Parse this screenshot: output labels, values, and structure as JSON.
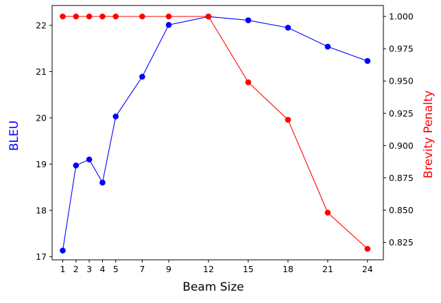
{
  "chart_data": {
    "type": "line",
    "xlabel": "Beam Size",
    "x": [
      1,
      2,
      3,
      4,
      5,
      7,
      9,
      12,
      15,
      18,
      21,
      24
    ],
    "xticks": [
      "1",
      "2",
      "3",
      "4",
      "5",
      "7",
      "9",
      "12",
      "15",
      "18",
      "21",
      "24"
    ],
    "xlim": [
      0.2,
      25.2
    ],
    "series": [
      {
        "name": "BLEU",
        "axis": "left",
        "color": "#0000ff",
        "values": [
          17.13,
          18.97,
          19.1,
          18.6,
          20.03,
          20.89,
          22.01,
          22.19,
          22.11,
          21.95,
          21.54,
          21.23
        ]
      },
      {
        "name": "Brevity Penalty",
        "axis": "right",
        "color": "#ff0000",
        "values": [
          1.0,
          1.0,
          1.0,
          1.0,
          1.0,
          1.0,
          1.0,
          1.0,
          0.949,
          0.92,
          0.848,
          0.82
        ]
      }
    ],
    "y_left": {
      "label": "BLEU",
      "color": "#0000ff",
      "lim": [
        16.93,
        22.43
      ],
      "ticks": [
        "17",
        "18",
        "19",
        "20",
        "21",
        "22"
      ]
    },
    "y_right": {
      "label": "Brevity Penalty",
      "color": "#ff0000",
      "lim": [
        0.8115,
        1.0085
      ],
      "ticks": [
        "0.825",
        "0.850",
        "0.875",
        "0.900",
        "0.925",
        "0.950",
        "0.975",
        "1.000"
      ]
    },
    "grid": false,
    "legend": "none"
  }
}
